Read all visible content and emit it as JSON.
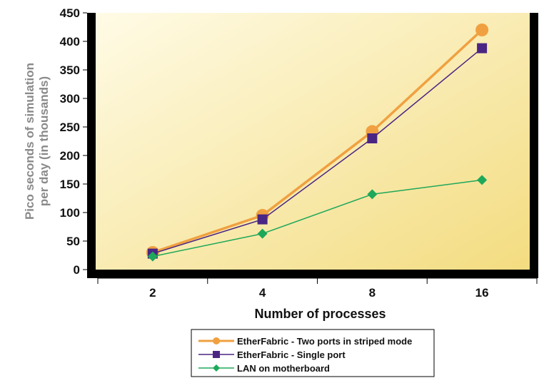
{
  "chart_data": {
    "type": "line",
    "title": "",
    "xlabel": "Number of processes",
    "ylabel_lines": [
      "Pico seconds of simulation",
      "per day (in thousands)"
    ],
    "categories": [
      "2",
      "4",
      "8",
      "16"
    ],
    "ylim": [
      0,
      450
    ],
    "yticks": [
      "0",
      "50",
      "100",
      "150",
      "200",
      "250",
      "300",
      "350",
      "400",
      "450"
    ],
    "plot_background": [
      "#fffbe6",
      "#f3dc80"
    ],
    "legend_position": "bottom",
    "series": [
      {
        "name": "EtherFabric - Two ports in striped mode",
        "values": [
          30,
          95,
          242,
          420
        ],
        "color": "#f0a040",
        "marker": "circle"
      },
      {
        "name": "EtherFabric - Single port",
        "values": [
          28,
          88,
          230,
          388
        ],
        "color": "#4b2583",
        "marker": "square"
      },
      {
        "name": "LAN on motherboard",
        "values": [
          23,
          63,
          132,
          157
        ],
        "color": "#1ea85a",
        "marker": "diamond"
      }
    ]
  }
}
